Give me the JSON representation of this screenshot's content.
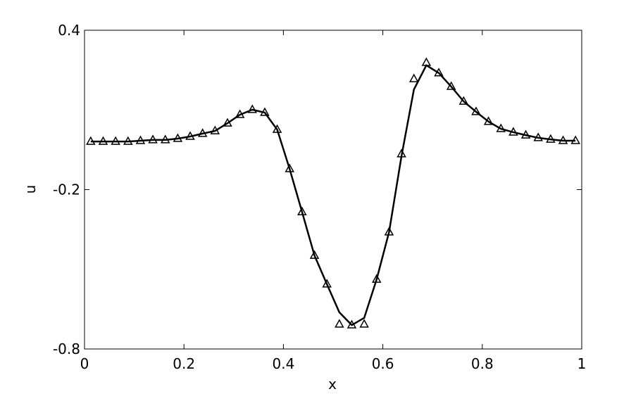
{
  "chart_data": {
    "type": "line",
    "xlabel": "x",
    "ylabel": "u",
    "x": [
      0.0125,
      0.0375,
      0.0625,
      0.0875,
      0.1125,
      0.1375,
      0.1625,
      0.1875,
      0.2125,
      0.2375,
      0.2625,
      0.2875,
      0.3125,
      0.3375,
      0.3625,
      0.3875,
      0.4125,
      0.4375,
      0.4625,
      0.4875,
      0.5125,
      0.5375,
      0.5625,
      0.5875,
      0.6125,
      0.6375,
      0.6625,
      0.6875,
      0.7125,
      0.7375,
      0.7625,
      0.7875,
      0.8125,
      0.8375,
      0.8625,
      0.8875,
      0.9125,
      0.9375,
      0.9625,
      0.9875
    ],
    "series": [
      {
        "color": "#000000",
        "marker": "none",
        "values": [
          -0.019,
          -0.019,
          -0.019,
          -0.019,
          -0.016,
          -0.013,
          -0.013,
          -0.008,
          0,
          0.011,
          0.021,
          0.05,
          0.082,
          0.101,
          0.09,
          0.026,
          -0.122,
          -0.284,
          -0.448,
          -0.556,
          -0.662,
          -0.71,
          -0.683,
          -0.538,
          -0.36,
          -0.074,
          0.177,
          0.268,
          0.239,
          0.188,
          0.132,
          0.093,
          0.056,
          0.029,
          0.016,
          0.005,
          -0.005,
          -0.011,
          -0.016,
          -0.016
        ]
      },
      {
        "color": "#000000",
        "marker": "triangle",
        "values": [
          -0.019,
          -0.019,
          -0.019,
          -0.019,
          -0.016,
          -0.013,
          -0.013,
          -0.008,
          0,
          0.011,
          0.021,
          0.05,
          0.082,
          0.101,
          0.09,
          0.026,
          -0.122,
          -0.284,
          -0.448,
          -0.556,
          -0.707,
          -0.71,
          -0.707,
          -0.538,
          -0.36,
          -0.066,
          0.217,
          0.278,
          0.239,
          0.188,
          0.132,
          0.093,
          0.056,
          0.029,
          0.016,
          0.005,
          -0.005,
          -0.011,
          -0.016,
          -0.016
        ]
      }
    ],
    "xlim": [
      0,
      1
    ],
    "xticks": [
      0,
      0.2,
      0.4,
      0.6,
      0.8,
      1
    ],
    "ylim": [
      -0.8,
      0.4
    ],
    "yticks": [
      -0.8,
      -0.2,
      0.4
    ],
    "grid": false
  }
}
